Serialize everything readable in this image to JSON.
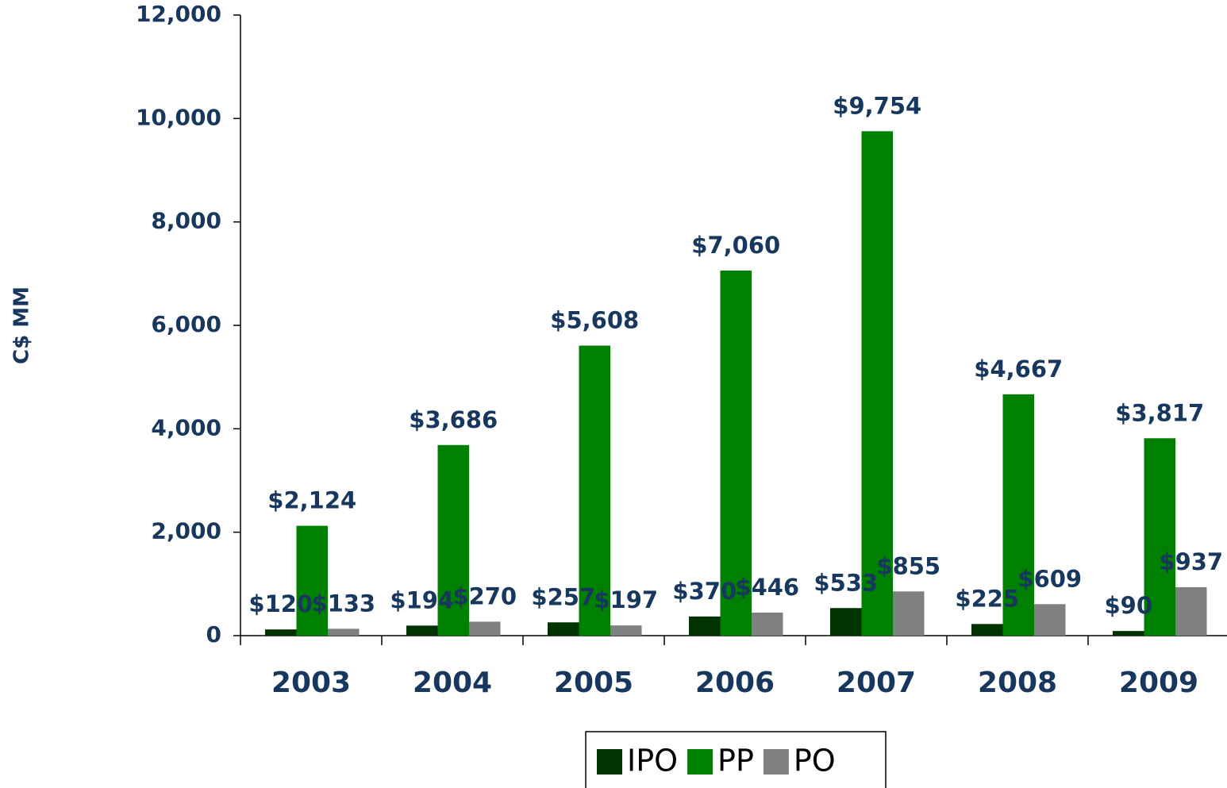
{
  "chart_data": {
    "type": "bar",
    "y_label": "C$ MM",
    "categories": [
      "2003",
      "2004",
      "2005",
      "2006",
      "2007",
      "2008",
      "2009"
    ],
    "series": [
      {
        "name": "IPO",
        "color": "#003300",
        "values": [
          120,
          194,
          257,
          370,
          533,
          225,
          90
        ],
        "value_labels": [
          "$120",
          "$194",
          "$257",
          "$370",
          "$533",
          "$225",
          "$90"
        ]
      },
      {
        "name": "PP",
        "color": "#008000",
        "values": [
          2124,
          3686,
          5608,
          7060,
          9754,
          4667,
          3817
        ],
        "value_labels": [
          "$2,124",
          "$3,686",
          "$5,608",
          "$7,060",
          "$9,754",
          "$4,667",
          "$3,817"
        ]
      },
      {
        "name": "PO",
        "color": "#808080",
        "values": [
          133,
          270,
          197,
          446,
          855,
          609,
          937
        ],
        "value_labels": [
          "$133",
          "$270",
          "$197",
          "$446",
          "$855",
          "$609",
          "$937"
        ]
      }
    ],
    "ylim": [
      0,
      12000
    ],
    "yticks": [
      0,
      {
        "value": 2000,
        "label": "2,000"
      },
      {
        "value": 4000,
        "label": "4,000"
      },
      {
        "value": 6000,
        "label": "6,000"
      },
      {
        "value": 8000,
        "label": "8,000"
      },
      {
        "value": 10000,
        "label": "10,000"
      },
      {
        "value": 12000,
        "label": "12,000"
      }
    ],
    "legend": "bottom"
  }
}
